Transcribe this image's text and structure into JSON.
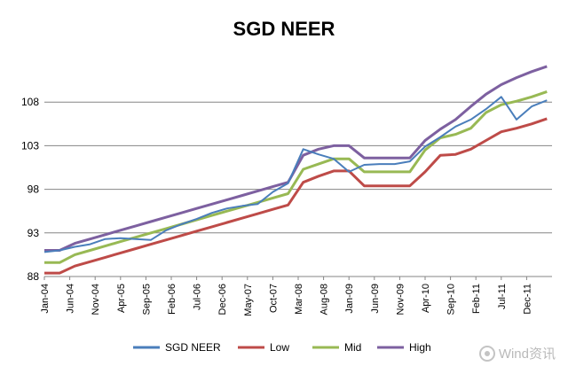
{
  "chart_data": {
    "type": "line",
    "title": "SGD NEER",
    "xlabel": "",
    "ylabel": "",
    "ylim": [
      88,
      113
    ],
    "yticks": [
      88,
      93,
      98,
      103,
      108
    ],
    "grid": "horizontal",
    "legend_position": "bottom",
    "x_ticks": [
      "Jan-04",
      "Jun-04",
      "Nov-04",
      "Apr-05",
      "Sep-05",
      "Feb-06",
      "Jul-06",
      "Dec-06",
      "May-07",
      "Oct-07",
      "Mar-08",
      "Aug-08",
      "Jan-09",
      "Jun-09",
      "Nov-09",
      "Apr-10",
      "Sep-10",
      "Feb-11",
      "Jul-11",
      "Dec-11"
    ],
    "x": [
      "Jan-04",
      "Apr-04",
      "Jul-04",
      "Oct-04",
      "Jan-05",
      "Apr-05",
      "Jul-05",
      "Oct-05",
      "Jan-06",
      "Apr-06",
      "Jul-06",
      "Oct-06",
      "Jan-07",
      "Apr-07",
      "Jul-07",
      "Oct-07",
      "Jan-08",
      "Apr-08",
      "Jul-08",
      "Oct-08",
      "Jan-09",
      "Apr-09",
      "Jul-09",
      "Oct-09",
      "Jan-10",
      "Apr-10",
      "Jul-10",
      "Oct-10",
      "Jan-11",
      "Apr-11",
      "Jul-11",
      "Oct-11",
      "Jan-12",
      "Apr-12"
    ],
    "series": [
      {
        "name": "SGD NEER",
        "color": "#4a7ebb",
        "values": [
          90.8,
          91.0,
          91.4,
          91.7,
          92.3,
          92.4,
          92.3,
          92.2,
          93.3,
          94.0,
          94.6,
          95.3,
          95.8,
          96.1,
          96.3,
          97.7,
          98.7,
          102.6,
          102.0,
          101.5,
          100.0,
          100.8,
          100.9,
          100.9,
          101.2,
          102.9,
          104.0,
          105.2,
          106.0,
          107.2,
          108.6,
          106.0,
          107.5,
          108.2
        ]
      },
      {
        "name": "Low",
        "color": "#be4b48",
        "values": [
          88.4,
          88.4,
          89.2,
          89.7,
          90.2,
          90.7,
          91.2,
          91.7,
          92.2,
          92.7,
          93.2,
          93.7,
          94.2,
          94.7,
          95.2,
          95.7,
          96.2,
          98.8,
          99.5,
          100.1,
          100.1,
          98.4,
          98.4,
          98.4,
          98.4,
          100.0,
          101.9,
          102.0,
          102.6,
          103.6,
          104.6,
          105.0,
          105.5,
          106.1
        ]
      },
      {
        "name": "Mid",
        "color": "#98b954",
        "values": [
          89.6,
          89.6,
          90.5,
          91.0,
          91.5,
          92.0,
          92.5,
          93.0,
          93.5,
          94.0,
          94.5,
          95.0,
          95.5,
          96.0,
          96.5,
          97.0,
          97.5,
          100.3,
          100.9,
          101.5,
          101.5,
          100.0,
          100.0,
          100.0,
          100.0,
          102.5,
          103.9,
          104.3,
          105.0,
          106.8,
          107.7,
          108.1,
          108.6,
          109.2
        ]
      },
      {
        "name": "High",
        "color": "#7d60a0",
        "values": [
          91.0,
          91.0,
          91.8,
          92.3,
          92.8,
          93.3,
          93.8,
          94.3,
          94.8,
          95.3,
          95.8,
          96.3,
          96.8,
          97.3,
          97.8,
          98.3,
          98.8,
          101.9,
          102.6,
          103.0,
          103.0,
          101.6,
          101.6,
          101.6,
          101.6,
          103.6,
          104.9,
          106.0,
          107.5,
          108.9,
          110.0,
          110.8,
          111.5,
          112.1
        ]
      }
    ]
  },
  "watermark": {
    "text": "Wind资讯"
  }
}
